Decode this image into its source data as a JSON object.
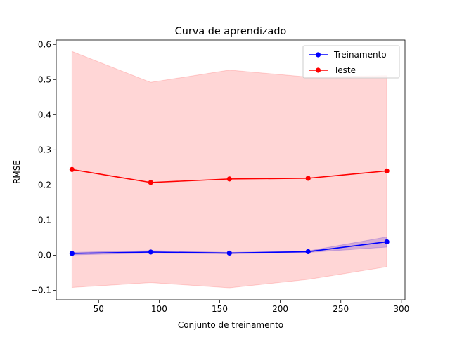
{
  "chart_data": {
    "type": "line",
    "title": "Curva de aprendizado",
    "xlabel": "Conjunto de treinamento",
    "ylabel": "RMSE",
    "xlim": [
      15,
      303
    ],
    "ylim": [
      -0.127,
      0.6125
    ],
    "xticks": [
      50,
      100,
      150,
      200,
      250,
      300
    ],
    "yticks": [
      -0.1,
      0.0,
      0.1,
      0.2,
      0.3,
      0.4,
      0.5,
      0.6
    ],
    "ytick_labels": [
      "−0.1",
      "0.0",
      "0.1",
      "0.2",
      "0.3",
      "0.4",
      "0.5",
      "0.6"
    ],
    "grid": false,
    "legend_position": "top-right",
    "x": [
      28,
      93,
      158,
      223,
      288
    ],
    "series": [
      {
        "name": "Treinamento",
        "color": "#0000ff",
        "values": [
          0.005,
          0.009,
          0.006,
          0.01,
          0.038
        ],
        "band_lower": [
          0.001,
          0.006,
          0.004,
          0.008,
          0.023
        ],
        "band_upper": [
          0.008,
          0.013,
          0.008,
          0.012,
          0.052
        ],
        "band_color": "#0000ff",
        "band_opacity": 0.2
      },
      {
        "name": "Teste",
        "color": "#ff0000",
        "values": [
          0.244,
          0.207,
          0.217,
          0.219,
          0.24
        ],
        "band_lower": [
          -0.092,
          -0.078,
          -0.093,
          -0.069,
          -0.033
        ],
        "band_upper": [
          0.58,
          0.492,
          0.527,
          0.507,
          0.511
        ],
        "band_color": "#ff0000",
        "band_opacity": 0.16
      }
    ]
  }
}
